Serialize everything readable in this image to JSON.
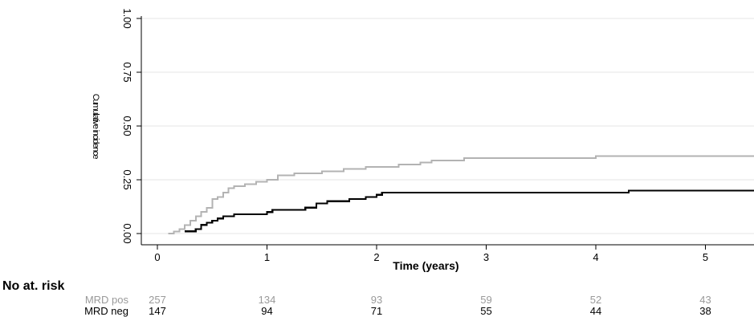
{
  "chart_data": {
    "type": "line",
    "xlabel": "Time (years)",
    "ylabel": "Cumulative incidence",
    "xlim": [
      0,
      5.5
    ],
    "ylim": [
      0,
      1
    ],
    "x_ticks": [
      "0",
      "1",
      "2",
      "3",
      "4",
      "5"
    ],
    "y_ticks": [
      "0.00",
      "0.25",
      "0.50",
      "0.75",
      "1.00"
    ],
    "grid": true,
    "colors": {
      "mrd_pos": "#b3b3b3",
      "mrd_neg": "#000000",
      "grid": "#e6e6e6"
    },
    "series": [
      {
        "name": "MRD pos",
        "step": true,
        "points": [
          [
            0.1,
            0.0
          ],
          [
            0.15,
            0.01
          ],
          [
            0.2,
            0.02
          ],
          [
            0.25,
            0.04
          ],
          [
            0.3,
            0.06
          ],
          [
            0.35,
            0.08
          ],
          [
            0.4,
            0.1
          ],
          [
            0.45,
            0.12
          ],
          [
            0.5,
            0.16
          ],
          [
            0.55,
            0.17
          ],
          [
            0.6,
            0.19
          ],
          [
            0.65,
            0.21
          ],
          [
            0.7,
            0.22
          ],
          [
            0.8,
            0.23
          ],
          [
            0.9,
            0.24
          ],
          [
            1.0,
            0.25
          ],
          [
            1.1,
            0.27
          ],
          [
            1.25,
            0.28
          ],
          [
            1.5,
            0.29
          ],
          [
            1.7,
            0.3
          ],
          [
            1.9,
            0.31
          ],
          [
            2.1,
            0.31
          ],
          [
            2.2,
            0.32
          ],
          [
            2.4,
            0.33
          ],
          [
            2.5,
            0.34
          ],
          [
            2.8,
            0.35
          ],
          [
            3.0,
            0.35
          ],
          [
            4.0,
            0.36
          ],
          [
            5.5,
            0.36
          ]
        ]
      },
      {
        "name": "MRD neg",
        "step": true,
        "points": [
          [
            0.25,
            0.01
          ],
          [
            0.35,
            0.02
          ],
          [
            0.4,
            0.04
          ],
          [
            0.45,
            0.05
          ],
          [
            0.5,
            0.06
          ],
          [
            0.55,
            0.07
          ],
          [
            0.6,
            0.08
          ],
          [
            0.7,
            0.09
          ],
          [
            0.85,
            0.09
          ],
          [
            1.0,
            0.1
          ],
          [
            1.05,
            0.11
          ],
          [
            1.3,
            0.11
          ],
          [
            1.35,
            0.12
          ],
          [
            1.45,
            0.14
          ],
          [
            1.55,
            0.15
          ],
          [
            1.75,
            0.16
          ],
          [
            1.9,
            0.17
          ],
          [
            2.0,
            0.18
          ],
          [
            2.05,
            0.19
          ],
          [
            4.3,
            0.2
          ],
          [
            5.5,
            0.2
          ]
        ]
      }
    ],
    "risk_table": {
      "title": "No at. risk",
      "rows": [
        {
          "label": "MRD pos",
          "values": [
            "257",
            "134",
            "93",
            "59",
            "52",
            "43"
          ]
        },
        {
          "label": "MRD neg",
          "values": [
            "147",
            "94",
            "71",
            "55",
            "44",
            "38"
          ]
        }
      ]
    }
  }
}
